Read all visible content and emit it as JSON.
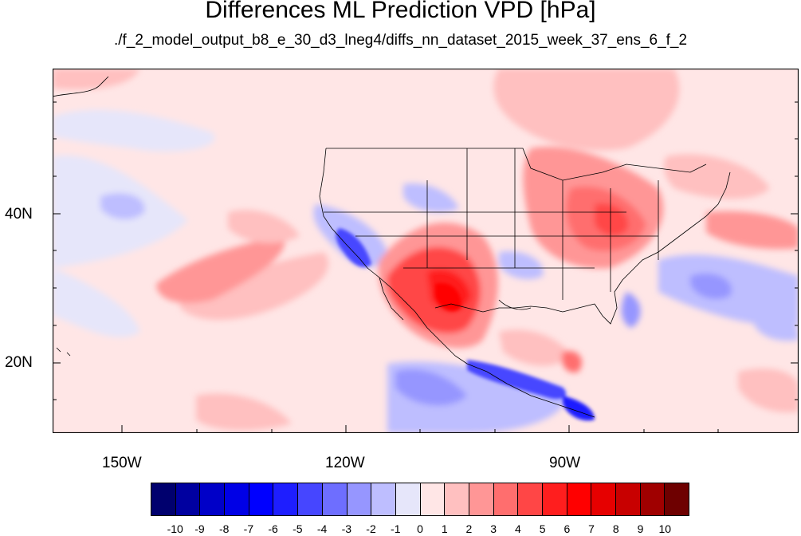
{
  "title": "Differences ML Prediction VPD [hPa]",
  "subtitle": "./f_2_model_output_b8_e_30_d3_lneg4/diffs_nn_dataset_2015_week_37_ens_6_f_2",
  "map": {
    "lon_labels": [
      "150W",
      "120W",
      "90W"
    ],
    "lat_labels": [
      "40N",
      "20N"
    ]
  },
  "colorbar": {
    "labels": [
      "-10",
      "-9",
      "-8",
      "-7",
      "-6",
      "-5",
      "-4",
      "-3",
      "-2",
      "-1",
      "0",
      "1",
      "2",
      "3",
      "4",
      "5",
      "6",
      "7",
      "8",
      "9",
      "10"
    ],
    "colors": [
      "#00006e",
      "#0000a0",
      "#0000c8",
      "#0000e6",
      "#0000ff",
      "#1e1eff",
      "#4646ff",
      "#6e6eff",
      "#9696ff",
      "#bebeff",
      "#e6e6fa",
      "#ffe6e6",
      "#ffc0c0",
      "#ff9696",
      "#ff6e6e",
      "#ff4646",
      "#ff1e1e",
      "#ff0000",
      "#e60000",
      "#c80000",
      "#a00000",
      "#6e0000"
    ]
  }
}
